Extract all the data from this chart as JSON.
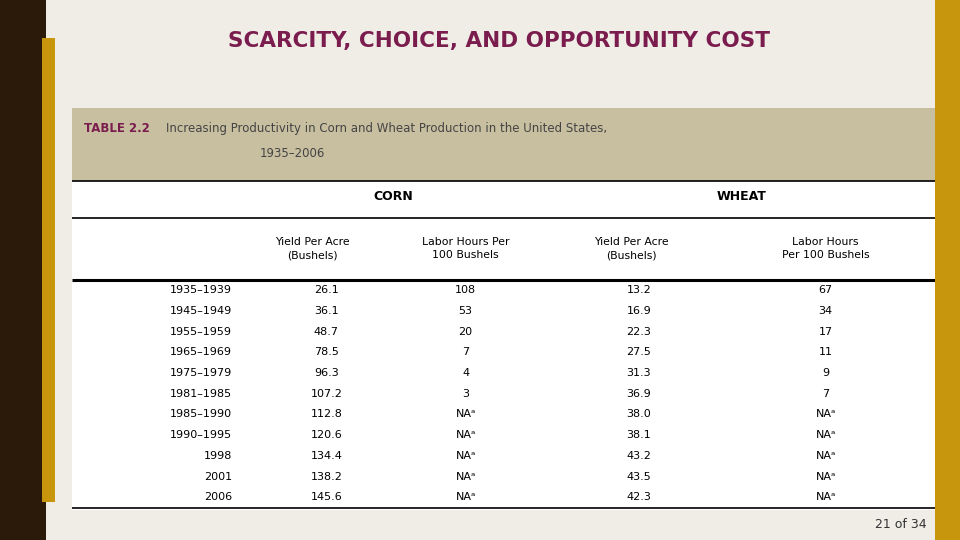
{
  "title": "SCARCITY, CHOICE, AND OPPORTUNITY COST",
  "title_color": "#7B1C4E",
  "bg_color": "#F0EDE6",
  "table_header_bg": "#C8BFA0",
  "table_caption_bold": "TABLE 2.2",
  "table_caption_rest": "Increasing Productivity in Corn and Wheat Production in the United States,",
  "table_caption_rest2": "1935–2006",
  "table_caption_color_bold": "#7B1C4E",
  "table_caption_color_rest": "#444444",
  "col_headers_sub": [
    "Yield Per Acre\n(Bushels)",
    "Labor Hours Per\n100 Bushels",
    "Yield Per Acre\n(Bushels)",
    "Labor Hours\nPer 100 Bushels"
  ],
  "row_labels": [
    "1935–1939",
    "1945–1949",
    "1955–1959",
    "1965–1969",
    "1975–1979",
    "1981–1985",
    "1985–1990",
    "1990–1995",
    "1998",
    "2001",
    "2006"
  ],
  "col1_corn_yield": [
    "26.1",
    "36.1",
    "48.7",
    "78.5",
    "96.3",
    "107.2",
    "112.8",
    "120.6",
    "134.4",
    "138.2",
    "145.6"
  ],
  "col2_corn_labor": [
    "108",
    "53",
    "20",
    "7",
    "4",
    "3",
    "NAᵃ",
    "NAᵃ",
    "NAᵃ",
    "NAᵃ",
    "NAᵃ"
  ],
  "col3_wheat_yield": [
    "13.2",
    "16.9",
    "22.3",
    "27.5",
    "31.3",
    "36.9",
    "38.0",
    "38.1",
    "43.2",
    "43.5",
    "42.3"
  ],
  "col4_wheat_labor": [
    "67",
    "34",
    "17",
    "11",
    "9",
    "7",
    "NAᵃ",
    "NAᵃ",
    "NAᵃ",
    "NAᵃ",
    "NAᵃ"
  ],
  "footer_text": "21 of 34",
  "left_dark_color": "#2B1A0A",
  "left_gold_color": "#C8960C",
  "right_gold_color": "#C8960C"
}
